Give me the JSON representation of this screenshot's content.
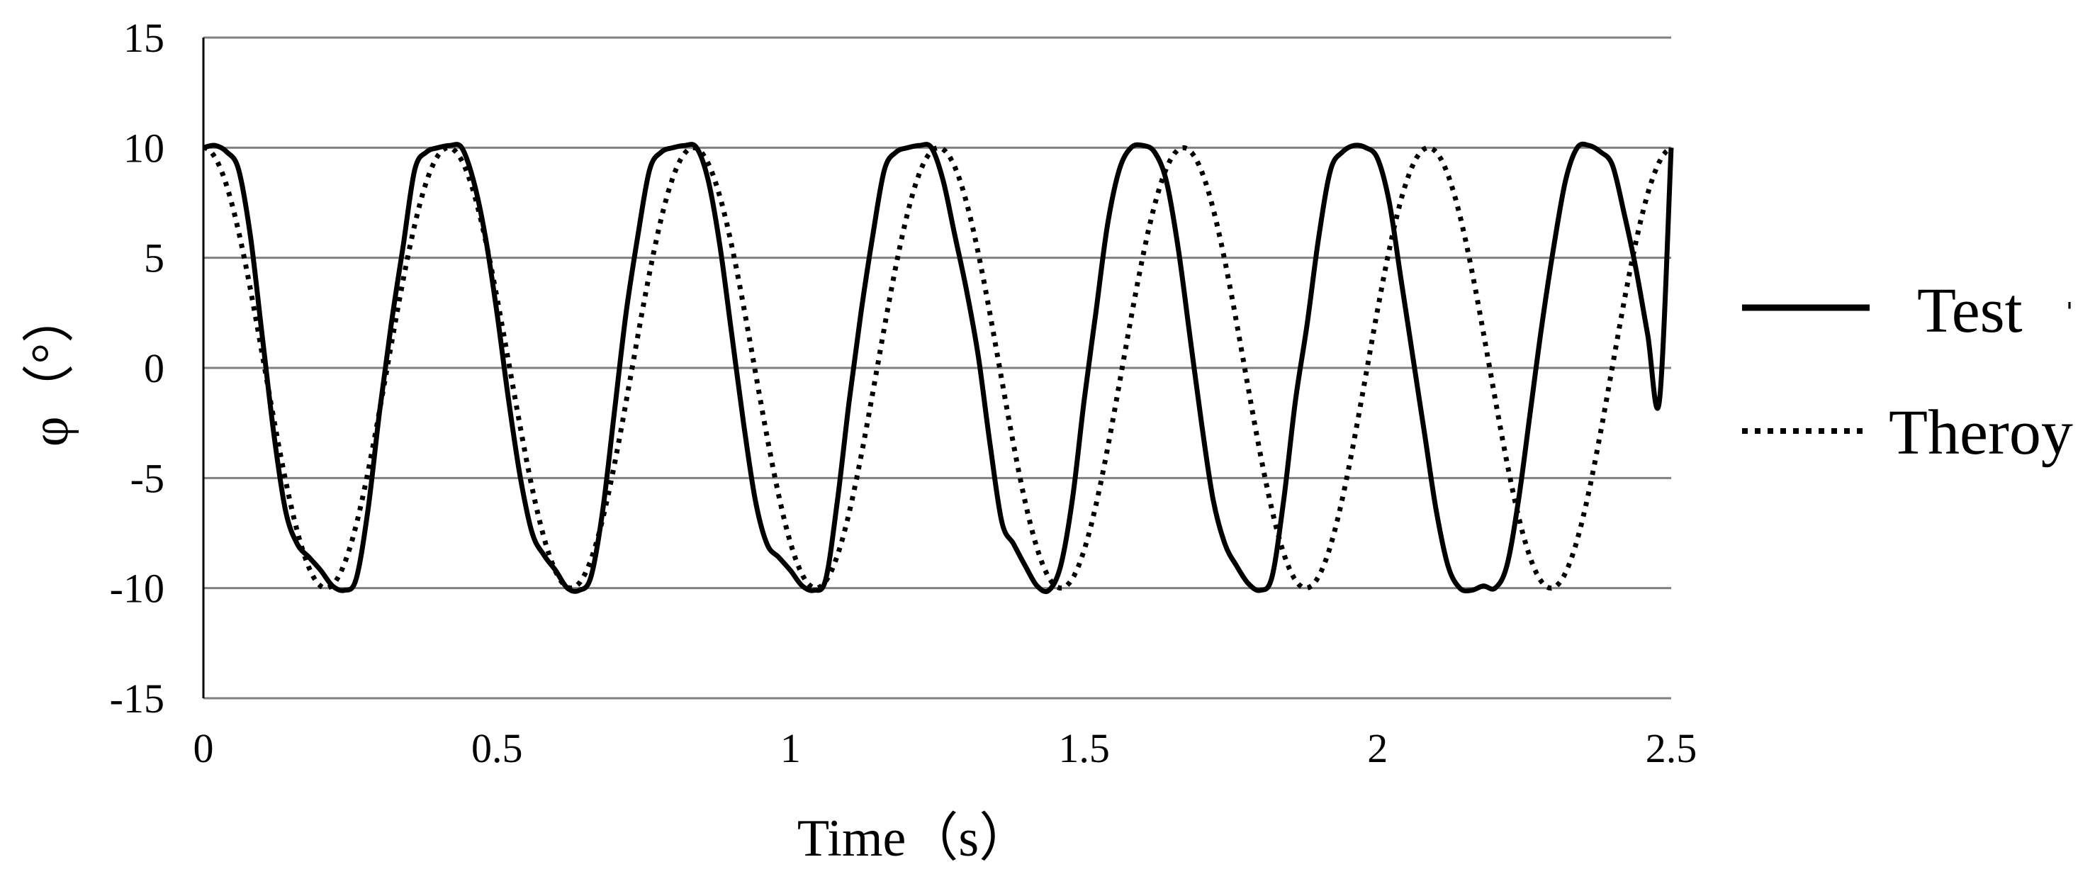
{
  "chart_data": {
    "type": "line",
    "xlabel": "Time（s）",
    "ylabel": "φ（°）",
    "xlim": [
      0,
      2.5
    ],
    "ylim": [
      -15,
      15
    ],
    "x_ticks": [
      "0",
      "0.5",
      "1",
      "1.5",
      "2",
      "2.5"
    ],
    "y_ticks": [
      "15",
      "10",
      "5",
      "0",
      "-5",
      "-10",
      "-15"
    ],
    "grid": "horizontal",
    "legend_position": "right",
    "series": [
      {
        "name": "Test",
        "style": "solid",
        "color": "#000000",
        "x": [
          0,
          0.02,
          0.04,
          0.06,
          0.08,
          0.1,
          0.12,
          0.14,
          0.16,
          0.18,
          0.2,
          0.22,
          0.24,
          0.26,
          0.28,
          0.3,
          0.32,
          0.34,
          0.36,
          0.38,
          0.4,
          0.42,
          0.44,
          0.46,
          0.48,
          0.5,
          0.52,
          0.54,
          0.56,
          0.58,
          0.6,
          0.62,
          0.64,
          0.66,
          0.68,
          0.7,
          0.72,
          0.74,
          0.76,
          0.78,
          0.8,
          0.82,
          0.84,
          0.86,
          0.88,
          0.9,
          0.92,
          0.94,
          0.96,
          0.98,
          1.0,
          1.02,
          1.04,
          1.06,
          1.08,
          1.1,
          1.12,
          1.14,
          1.16,
          1.18,
          1.2,
          1.22,
          1.24,
          1.26,
          1.28,
          1.3,
          1.32,
          1.34,
          1.36,
          1.38,
          1.4,
          1.42,
          1.44,
          1.46,
          1.48,
          1.5,
          1.52,
          1.54,
          1.56,
          1.58,
          1.6,
          1.62,
          1.64,
          1.66,
          1.68,
          1.7,
          1.72,
          1.74,
          1.76,
          1.78,
          1.8,
          1.82,
          1.84,
          1.86,
          1.88,
          1.9,
          1.92,
          1.94,
          1.96,
          1.98,
          2.0,
          2.02,
          2.04,
          2.06,
          2.08,
          2.1,
          2.12,
          2.14,
          2.16,
          2.18,
          2.2,
          2.22,
          2.24,
          2.26,
          2.28,
          2.3,
          2.32,
          2.34,
          2.36,
          2.38,
          2.4,
          2.42,
          2.44,
          2.46,
          2.48,
          2.5
        ],
        "y": [
          10.0,
          10.1,
          9.8,
          9.0,
          6.0,
          1.5,
          -3.0,
          -6.5,
          -8.0,
          -8.6,
          -9.2,
          -9.9,
          -10.1,
          -9.6,
          -6.5,
          -2.0,
          2.0,
          5.5,
          9.0,
          9.8,
          10.0,
          10.1,
          10.0,
          8.5,
          6.0,
          2.5,
          -1.5,
          -5.0,
          -7.5,
          -8.5,
          -9.2,
          -10.0,
          -10.1,
          -9.5,
          -6.5,
          -2.0,
          2.5,
          6.0,
          9.0,
          9.8,
          10.0,
          10.1,
          10.0,
          8.5,
          5.5,
          1.5,
          -2.5,
          -6.0,
          -8.0,
          -8.6,
          -9.2,
          -9.9,
          -10.1,
          -9.6,
          -6.0,
          -1.5,
          2.5,
          6.0,
          9.0,
          9.8,
          10.0,
          10.1,
          10.0,
          8.5,
          6.0,
          3.5,
          0.5,
          -3.5,
          -7.0,
          -8.0,
          -9.0,
          -9.9,
          -10.1,
          -9.0,
          -6.0,
          -1.5,
          2.5,
          6.5,
          9.0,
          10.0,
          10.1,
          9.8,
          8.5,
          5.5,
          1.5,
          -2.5,
          -6.0,
          -8.0,
          -9.0,
          -9.8,
          -10.1,
          -9.5,
          -6.0,
          -1.5,
          2.0,
          6.0,
          9.0,
          9.8,
          10.1,
          10.0,
          9.5,
          7.5,
          4.0,
          0.5,
          -3.0,
          -6.5,
          -9.0,
          -10.0,
          -10.1,
          -9.9,
          -10.0,
          -9.0,
          -6.0,
          -2.0,
          2.0,
          5.5,
          8.5,
          10.0,
          10.1,
          9.8,
          9.2,
          7.0,
          4.5,
          1.5,
          -1.5,
          10.0
        ]
      },
      {
        "name": "Theroy",
        "style": "dotted",
        "color": "#000000",
        "amplitude": 10,
        "period": 0.4173,
        "phase_x0": 0.0
      }
    ],
    "legend": [
      {
        "series": "Test",
        "label": "Test"
      },
      {
        "series": "Theroy",
        "label": "Theroy"
      }
    ]
  },
  "legend_extra_mark": "ˈ"
}
